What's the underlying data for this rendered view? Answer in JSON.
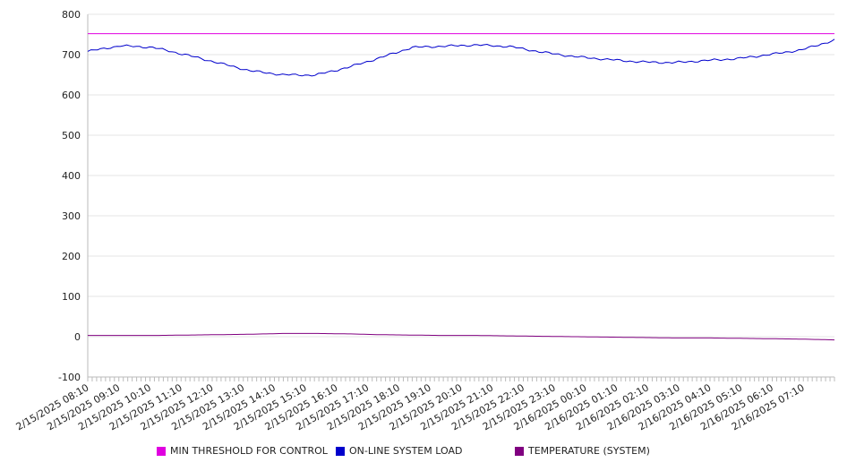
{
  "chart_data": {
    "type": "line",
    "title": "",
    "xlabel": "",
    "ylabel": "",
    "ylim": [
      -100,
      800
    ],
    "yticks": [
      "800",
      "700",
      "600",
      "500",
      "400",
      "300",
      "200",
      "100",
      "0",
      "-100"
    ],
    "xtick_labels": [
      "2/15/2025 08:10",
      "2/15/2025 09:10",
      "2/15/2025 10:10",
      "2/15/2025 11:10",
      "2/15/2025 12:10",
      "2/15/2025 13:10",
      "2/15/2025 14:10",
      "2/15/2025 15:10",
      "2/15/2025 16:10",
      "2/15/2025 17:10",
      "2/15/2025 18:10",
      "2/15/2025 19:10",
      "2/15/2025 20:10",
      "2/15/2025 21:10",
      "2/15/2025 22:10",
      "2/15/2025 23:10",
      "2/16/2025 00:10",
      "2/16/2025 01:10",
      "2/16/2025 02:10",
      "2/16/2025 03:10",
      "2/16/2025 04:10",
      "2/16/2025 05:10",
      "2/16/2025 06:10",
      "2/16/2025 07:10"
    ],
    "grid": true,
    "legend_position": "bottom",
    "series": [
      {
        "name": "MIN THRESHOLD FOR CONTROL",
        "color": "#e000e0",
        "values": [
          752,
          752,
          752,
          752,
          752,
          752,
          752,
          752,
          752,
          752,
          752,
          752,
          752,
          752,
          752,
          752,
          752,
          752,
          752,
          752,
          752,
          752,
          752,
          752
        ]
      },
      {
        "name": "ON-LINE SYSTEM LOAD",
        "color": "#0000cc",
        "values": [
          708,
          722,
          718,
          700,
          680,
          660,
          650,
          649,
          668,
          692,
          718,
          721,
          724,
          720,
          706,
          695,
          688,
          682,
          680,
          685,
          690,
          700,
          712,
          736
        ]
      },
      {
        "name": "TEMPERATURE (SYSTEM)",
        "color": "#800080",
        "values": [
          3,
          3,
          3,
          4,
          5,
          6,
          8,
          8,
          7,
          5,
          4,
          3,
          3,
          2,
          1,
          0,
          -1,
          -2,
          -3,
          -3,
          -4,
          -5,
          -6,
          -8
        ]
      }
    ]
  }
}
